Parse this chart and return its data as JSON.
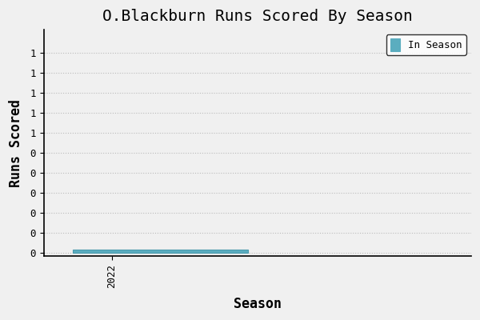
{
  "title": "O.Blackburn Runs Scored By Season",
  "xlabel": "Season",
  "ylabel": "Runs Scored",
  "legend_label": "In Season",
  "bar_color": "#5BADBF",
  "bar_edge_color": "#4A9AAD",
  "background_color": "#ffffff",
  "bar_data_x": [
    2022.5
  ],
  "bar_data_height": [
    0.02
  ],
  "bar_width": 1.8,
  "xlim": [
    2021.3,
    2025.7
  ],
  "ylim": [
    -0.02,
    1.45
  ],
  "yticks": [
    0.0,
    0.13,
    0.26,
    0.39,
    0.52,
    0.65,
    0.78,
    0.91,
    1.04,
    1.17,
    1.3
  ],
  "ytick_labels": [
    "0",
    "0",
    "0",
    "0",
    "0",
    "0",
    "1",
    "1",
    "1",
    "1",
    "1"
  ],
  "xtick_labels": [
    "2022"
  ],
  "xtick_positions": [
    2022
  ],
  "grid_color": "#bbbbbb",
  "title_fontsize": 14,
  "axis_label_fontsize": 12,
  "tick_fontsize": 9,
  "font_family": "monospace",
  "fig_bg": "#f0f0f0"
}
